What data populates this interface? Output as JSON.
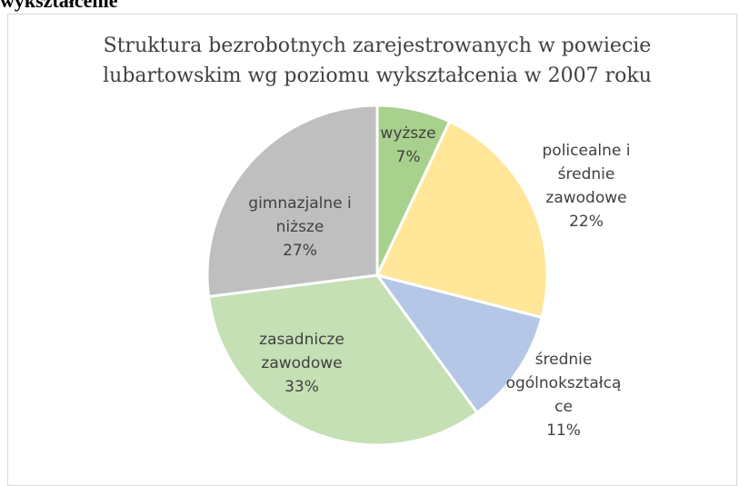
{
  "heading": "wykształcenie",
  "chart_data": {
    "type": "pie",
    "title": "Struktura bezrobotnych zarejestrowanych w powiecie lubartowskim wg poziomu wykształcenia w 2007 roku",
    "categories": [
      "wyższe",
      "policealne i średnie zawodowe",
      "średnie ogólnokształcące",
      "zasadnicze zawodowe",
      "gimnazjalne i niższe"
    ],
    "values": [
      7,
      22,
      11,
      33,
      27
    ],
    "value_labels": [
      "7%",
      "22%",
      "11%",
      "33%",
      "27%"
    ],
    "colors": [
      "#a9d18e",
      "#ffe699",
      "#b4c7e7",
      "#c5e0b4",
      "#bfbfbf"
    ]
  }
}
